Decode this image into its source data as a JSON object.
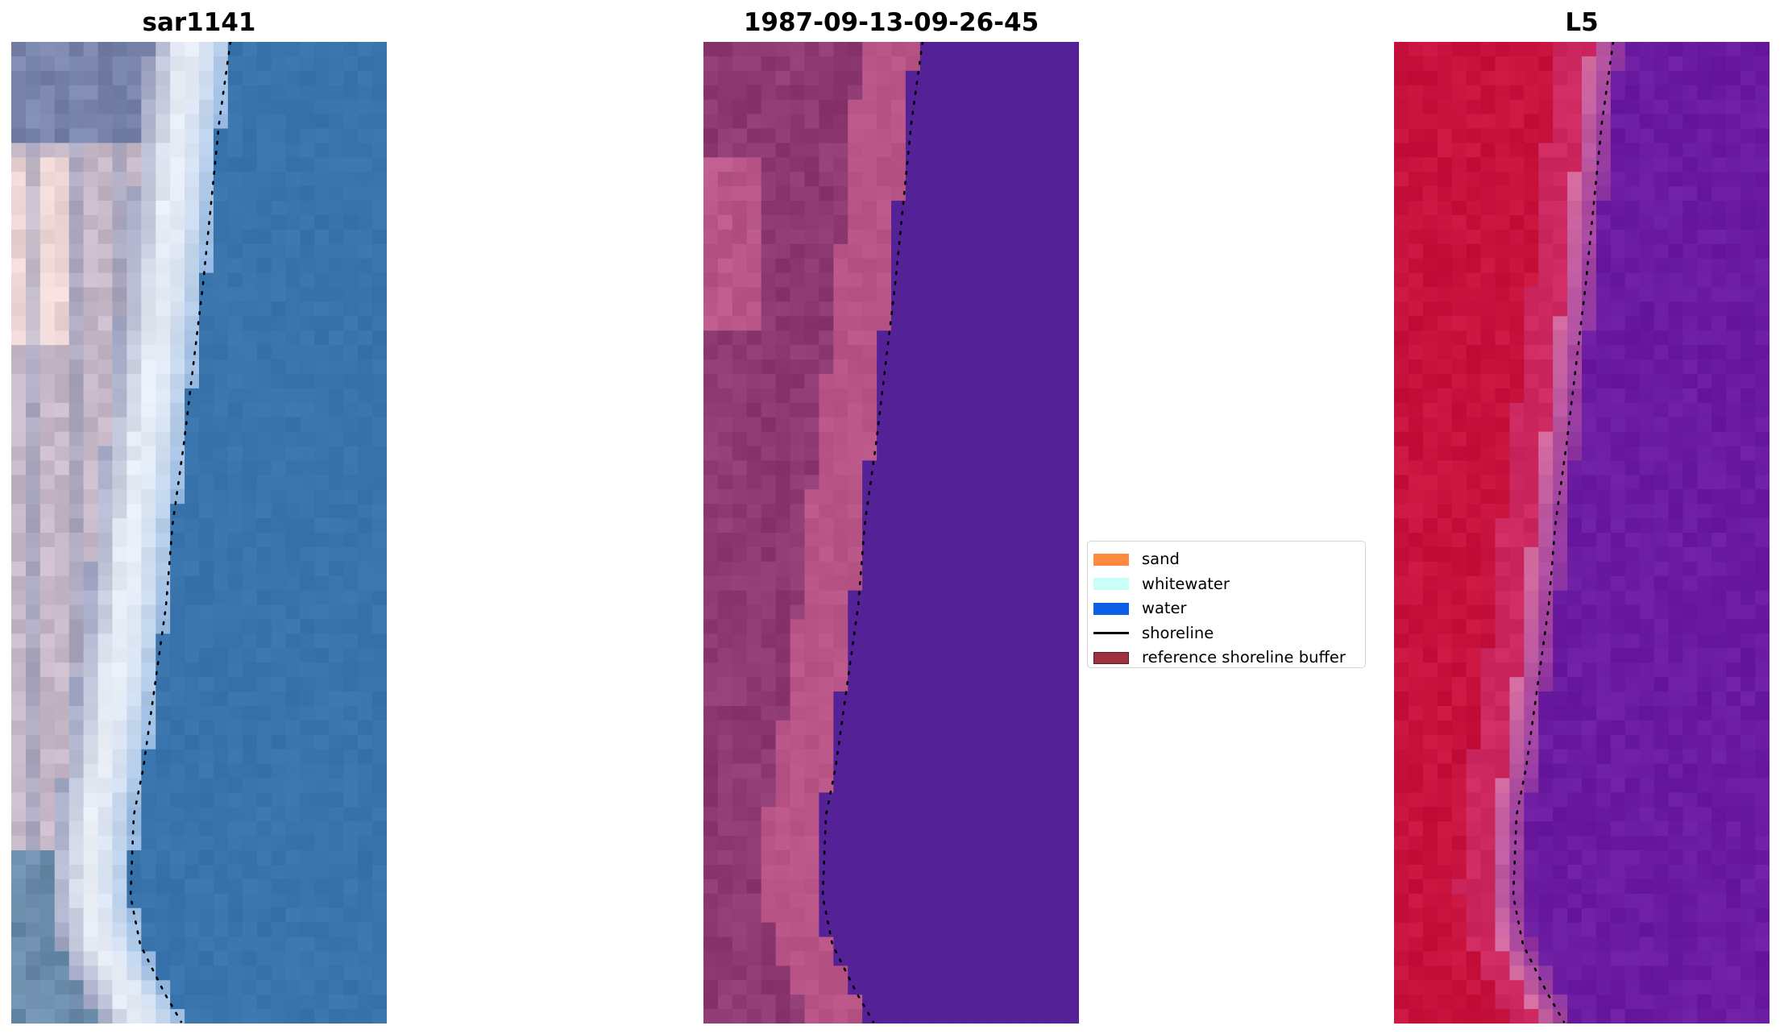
{
  "panels": [
    {
      "title": "sar1141",
      "kind": "rgb"
    },
    {
      "title": "1987-09-13-09-26-45",
      "kind": "classified"
    },
    {
      "title": "L5",
      "kind": "index"
    }
  ],
  "legend": {
    "items": [
      {
        "label": "sand",
        "type": "patch",
        "color": "#ff8a3d"
      },
      {
        "label": "whitewater",
        "type": "patch",
        "color": "#c8fff8"
      },
      {
        "label": "water",
        "type": "patch",
        "color": "#0a5fe6"
      },
      {
        "label": "shoreline",
        "type": "line",
        "color": "#000000"
      },
      {
        "label": "reference shoreline buffer",
        "type": "patch",
        "color": "#a03240"
      }
    ]
  },
  "colors": {
    "rgb_water": "#3a74ad",
    "rgb_foam": "#e9eef6",
    "rgb_land": "#c7b8c8",
    "class_water": "#542196",
    "class_buffer": "#b85486",
    "class_land": "#8e3a72",
    "index_land": "#c8123e",
    "index_water": "#6a1ba0"
  }
}
